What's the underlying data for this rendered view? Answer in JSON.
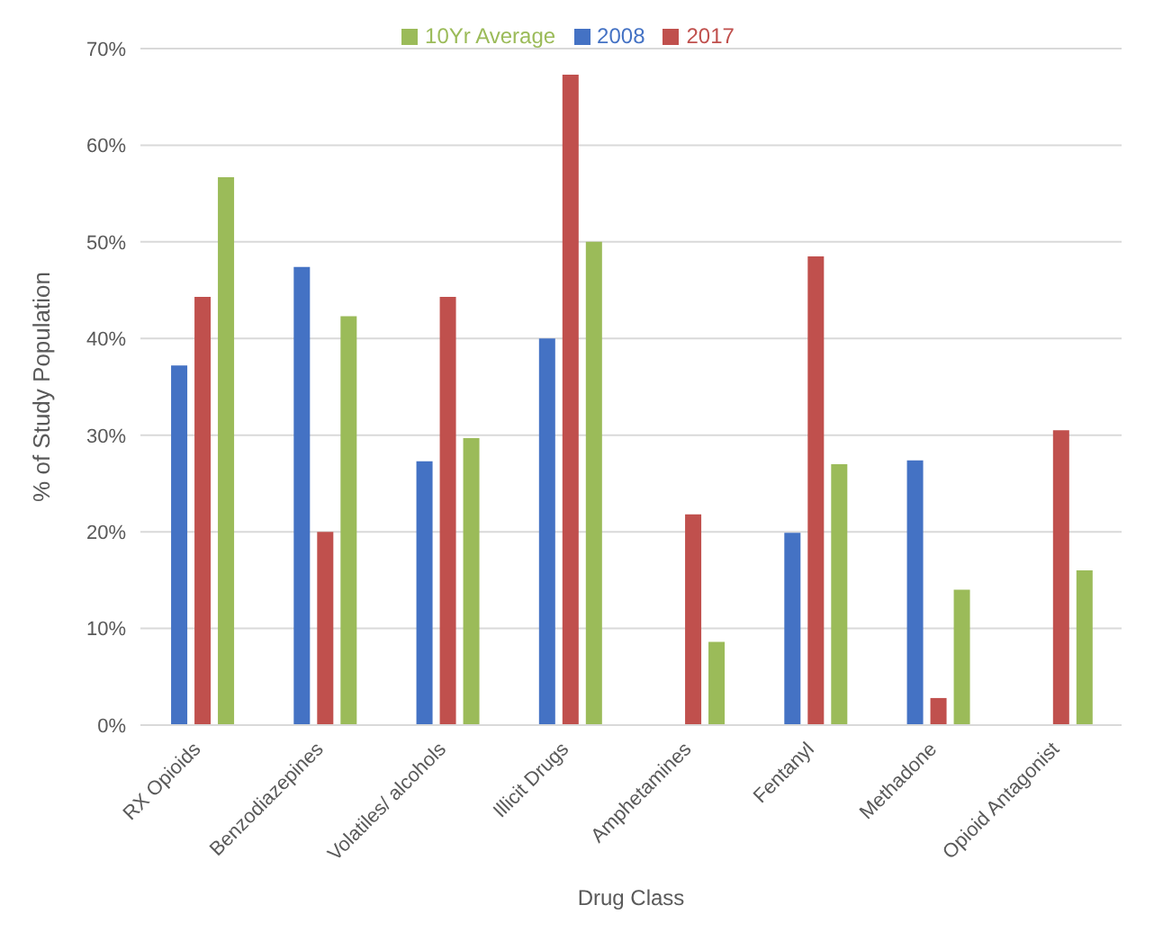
{
  "chart_data": {
    "type": "bar",
    "xlabel": "Drug Class",
    "ylabel": "% of Study Population",
    "categories": [
      "RX Opioids",
      "Benzodiazepines",
      "Volatiles/ alcohols",
      "Illicit Drugs",
      "Amphetamines",
      "Fentanyl",
      "Methadone",
      "Opioid Antagonist"
    ],
    "series": [
      {
        "name": "2008",
        "color": "#4472c4",
        "values": [
          37.2,
          47.4,
          27.3,
          40.0,
          null,
          19.9,
          27.4,
          null
        ]
      },
      {
        "name": "2017",
        "color": "#c0504d",
        "values": [
          44.3,
          20.0,
          44.3,
          67.3,
          21.8,
          48.5,
          2.8,
          30.5
        ]
      },
      {
        "name": "10Yr Average",
        "color": "#9bbb59",
        "values": [
          56.7,
          42.3,
          29.7,
          50.0,
          8.6,
          27.0,
          14.0,
          16.0
        ]
      }
    ],
    "ylim": [
      0,
      70
    ],
    "yticks": [
      {
        "value": 0,
        "label": "0%"
      },
      {
        "value": 10,
        "label": "10%"
      },
      {
        "value": 20,
        "label": "20%"
      },
      {
        "value": 30,
        "label": "30%"
      },
      {
        "value": 40,
        "label": "40%"
      },
      {
        "value": 50,
        "label": "50%"
      },
      {
        "value": 60,
        "label": "60%"
      },
      {
        "value": 70,
        "label": "70%"
      }
    ],
    "grid": "y",
    "legend": "top"
  }
}
